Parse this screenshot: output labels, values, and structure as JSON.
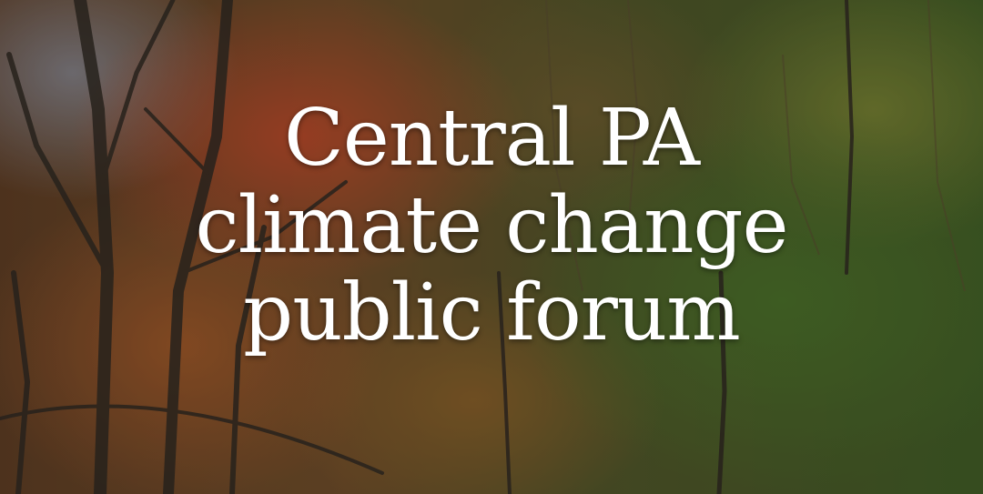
{
  "hero": {
    "title_lines": [
      "Central PA",
      "climate change",
      "public forum"
    ],
    "background_image": "forest-icon",
    "colors": {
      "title_text": "#ffffff",
      "foliage_red": "#be4628",
      "foliage_green": "#466e28",
      "foliage_yellow": "#8c8c32"
    }
  }
}
